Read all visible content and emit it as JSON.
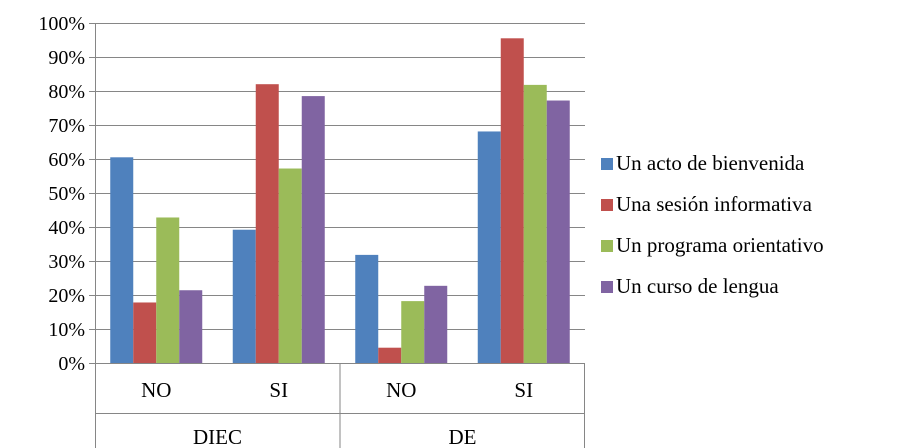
{
  "chart_data": {
    "type": "bar",
    "ylim": [
      0,
      1
    ],
    "yticks": [
      "0%",
      "10%",
      "20%",
      "30%",
      "40%",
      "50%",
      "60%",
      "70%",
      "80%",
      "90%",
      "100%"
    ],
    "grid": true,
    "legend_position": "right",
    "groups": [
      {
        "label": "DIEC",
        "categories": [
          "NO",
          "SI"
        ]
      },
      {
        "label": "DE",
        "categories": [
          "NO",
          "SI"
        ]
      }
    ],
    "categories": [
      "NO",
      "SI",
      "NO",
      "SI"
    ],
    "series": [
      {
        "name": "Un acto de bienvenida",
        "color": "#4F81BD",
        "values": [
          0.605,
          0.392,
          0.318,
          0.681
        ]
      },
      {
        "name": "Una sesión informativa",
        "color": "#C0504D",
        "values": [
          0.178,
          0.82,
          0.045,
          0.955
        ]
      },
      {
        "name": "Un programa orientativo",
        "color": "#9BBB59",
        "values": [
          0.428,
          0.572,
          0.182,
          0.818
        ]
      },
      {
        "name": "Un curso de lengua",
        "color": "#8064A2",
        "values": [
          0.214,
          0.785,
          0.227,
          0.772
        ]
      }
    ]
  }
}
